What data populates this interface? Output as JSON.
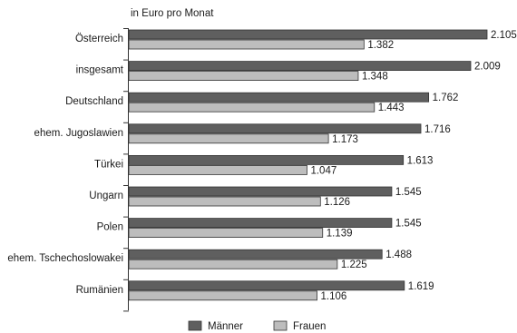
{
  "chart_data": {
    "type": "bar",
    "orientation": "horizontal",
    "unit_label": "in Euro pro Monat",
    "categories": [
      "Österreich",
      "insgesamt",
      "Deutschland",
      "ehem. Jugoslawien",
      "Türkei",
      "Ungarn",
      "Polen",
      "ehem. Tschechoslowakei",
      "Rumänien"
    ],
    "series": [
      {
        "name": "Männer",
        "color": "#5f5f5f",
        "values": [
          2105,
          2009,
          1762,
          1716,
          1613,
          1545,
          1545,
          1488,
          1619
        ],
        "labels": [
          "2.105",
          "2.009",
          "1.762",
          "1.716",
          "1.613",
          "1.545",
          "1.545",
          "1.488",
          "1.619"
        ]
      },
      {
        "name": "Frauen",
        "color": "#bdbdbd",
        "values": [
          1382,
          1348,
          1443,
          1173,
          1047,
          1126,
          1139,
          1225,
          1106
        ],
        "labels": [
          "1.382",
          "1.348",
          "1.443",
          "1.173",
          "1.047",
          "1.126",
          "1.139",
          "1.225",
          "1.106"
        ]
      }
    ],
    "xlim": [
      0,
      2105
    ],
    "grid": false,
    "legend": "bottom"
  }
}
